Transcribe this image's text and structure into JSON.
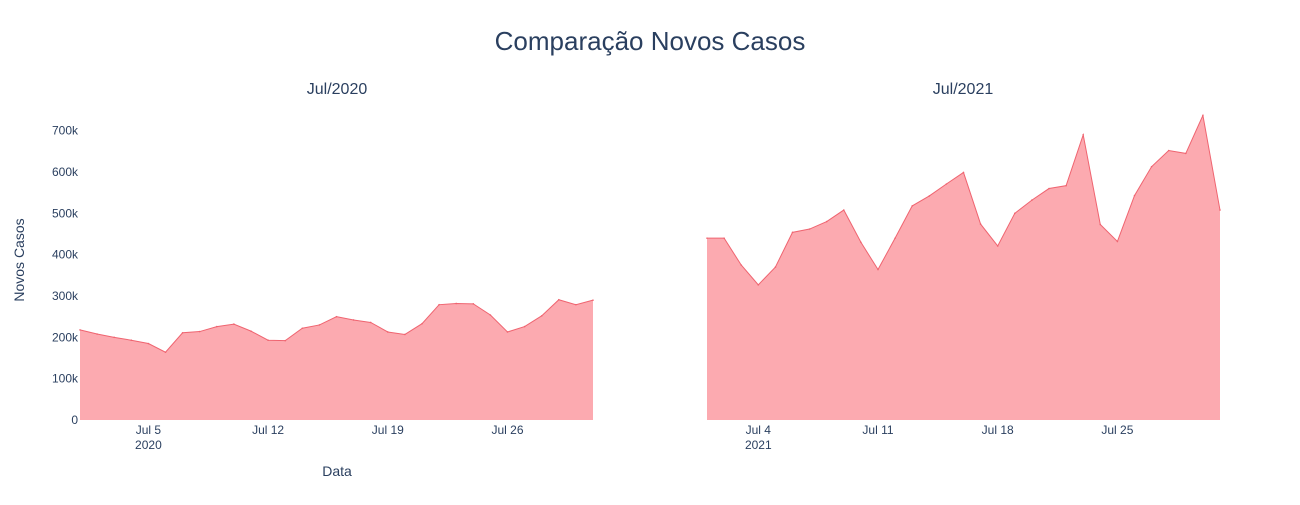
{
  "chart_data": {
    "type": "area",
    "title": "Comparação Novos Casos",
    "xlabel": "Data",
    "ylabel": "Novos Casos",
    "ylim": [
      0,
      750000
    ],
    "yticks": [
      0,
      100000,
      200000,
      300000,
      400000,
      500000,
      600000,
      700000
    ],
    "ytick_labels": [
      "0",
      "100k",
      "200k",
      "300k",
      "400k",
      "500k",
      "600k",
      "700k"
    ],
    "grid": false,
    "fill_color": "#fcaab0",
    "line_color": "#ef6470",
    "subplots": [
      {
        "subtitle": "Jul/2020",
        "x": [
          "2020-07-01",
          "2020-07-02",
          "2020-07-03",
          "2020-07-04",
          "2020-07-05",
          "2020-07-06",
          "2020-07-07",
          "2020-07-08",
          "2020-07-09",
          "2020-07-10",
          "2020-07-11",
          "2020-07-12",
          "2020-07-13",
          "2020-07-14",
          "2020-07-15",
          "2020-07-16",
          "2020-07-17",
          "2020-07-18",
          "2020-07-19",
          "2020-07-20",
          "2020-07-21",
          "2020-07-22",
          "2020-07-23",
          "2020-07-24",
          "2020-07-25",
          "2020-07-26",
          "2020-07-27",
          "2020-07-28",
          "2020-07-29",
          "2020-07-30",
          "2020-07-31"
        ],
        "values": [
          218000,
          208000,
          200000,
          193000,
          185000,
          164000,
          211000,
          214000,
          226000,
          232000,
          215000,
          193000,
          192000,
          222000,
          230000,
          250000,
          242000,
          236000,
          213000,
          207000,
          233000,
          279000,
          282000,
          281000,
          254000,
          213000,
          226000,
          252000,
          291000,
          279000,
          290000
        ],
        "xticks": [
          {
            "date": "2020-07-05",
            "label": "Jul 5",
            "sublabel": "2020"
          },
          {
            "date": "2020-07-12",
            "label": "Jul 12",
            "sublabel": ""
          },
          {
            "date": "2020-07-19",
            "label": "Jul 19",
            "sublabel": ""
          },
          {
            "date": "2020-07-26",
            "label": "Jul 26",
            "sublabel": ""
          }
        ]
      },
      {
        "subtitle": "Jul/2021",
        "x": [
          "2021-07-01",
          "2021-07-02",
          "2021-07-03",
          "2021-07-04",
          "2021-07-05",
          "2021-07-06",
          "2021-07-07",
          "2021-07-08",
          "2021-07-09",
          "2021-07-10",
          "2021-07-11",
          "2021-07-12",
          "2021-07-13",
          "2021-07-14",
          "2021-07-15",
          "2021-07-16",
          "2021-07-17",
          "2021-07-18",
          "2021-07-19",
          "2021-07-20",
          "2021-07-21",
          "2021-07-22",
          "2021-07-23",
          "2021-07-24",
          "2021-07-25",
          "2021-07-26",
          "2021-07-27",
          "2021-07-28",
          "2021-07-29",
          "2021-07-30",
          "2021-07-31"
        ],
        "values": [
          440000,
          440000,
          375000,
          327000,
          370000,
          454000,
          462000,
          480000,
          508000,
          430000,
          364000,
          440000,
          518000,
          542000,
          571000,
          599000,
          474000,
          421000,
          500000,
          532000,
          560000,
          567000,
          690000,
          473000,
          432000,
          543000,
          613000,
          652000,
          645000,
          737000,
          508000
        ],
        "xticks": [
          {
            "date": "2021-07-04",
            "label": "Jul 4",
            "sublabel": "2021"
          },
          {
            "date": "2021-07-11",
            "label": "Jul 11",
            "sublabel": ""
          },
          {
            "date": "2021-07-18",
            "label": "Jul 18",
            "sublabel": ""
          },
          {
            "date": "2021-07-25",
            "label": "Jul 25",
            "sublabel": ""
          }
        ]
      }
    ]
  }
}
